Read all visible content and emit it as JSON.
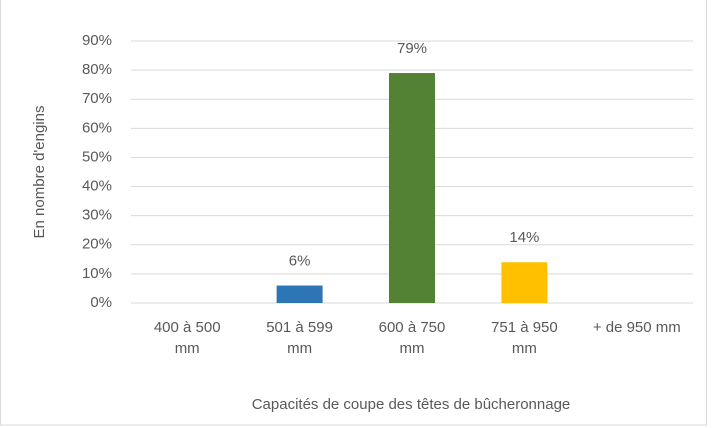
{
  "chart_data": {
    "type": "bar",
    "categories": [
      "400 à 500 mm",
      "501 à 599 mm",
      "600 à 750 mm",
      "751 à 950 mm",
      "+ de 950 mm"
    ],
    "values": [
      0,
      6,
      79,
      14,
      0
    ],
    "value_labels": [
      null,
      "6%",
      "79%",
      "14%",
      null
    ],
    "colors": [
      "#4472c4",
      "#2e75b6",
      "#548235",
      "#ffc000",
      "#4472c4"
    ],
    "ylim": [
      0,
      90
    ],
    "yticks": [
      {
        "value": 0,
        "label": "0%"
      },
      {
        "value": 10,
        "label": "10%"
      },
      {
        "value": 20,
        "label": "20%"
      },
      {
        "value": 30,
        "label": "30%"
      },
      {
        "value": 40,
        "label": "40%"
      },
      {
        "value": 50,
        "label": "50%"
      },
      {
        "value": 60,
        "label": "60%"
      },
      {
        "value": 70,
        "label": "70%"
      },
      {
        "value": 80,
        "label": "80%"
      },
      {
        "value": 90,
        "label": "90%"
      }
    ],
    "grid": true,
    "y_label": "En nombre d'engins",
    "x_label": "Capacités de coupe des têtes de bûcheronnage"
  }
}
